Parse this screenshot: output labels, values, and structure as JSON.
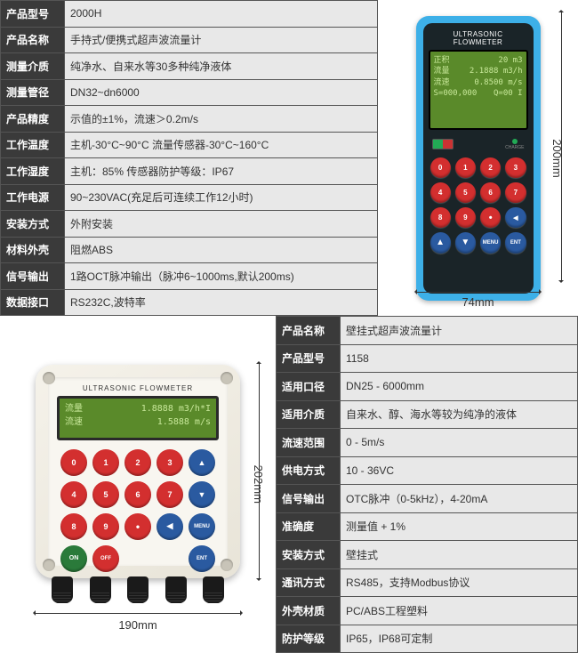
{
  "top": {
    "rows": [
      {
        "label": "产品型号",
        "value": "2000H"
      },
      {
        "label": "产品名称",
        "value": "手持式/便携式超声波流量计"
      },
      {
        "label": "测量介质",
        "value": "纯净水、自来水等30多种纯净液体"
      },
      {
        "label": "测量管径",
        "value": "DN32~dn6000"
      },
      {
        "label": "产品精度",
        "value": "示值的±1%，流速＞0.2m/s"
      },
      {
        "label": "工作温度",
        "value": "主机-30°C~90°C   流量传感器-30°C~160°C"
      },
      {
        "label": "工作湿度",
        "value": "主机：85%  传感器防护等级：IP67"
      },
      {
        "label": "工作电源",
        "value": "90~230VAC(充足后可连续工作12小时)"
      },
      {
        "label": "安装方式",
        "value": "外附安装"
      },
      {
        "label": "材料外壳",
        "value": "阻燃ABS"
      },
      {
        "label": "信号输出",
        "value": "1路OCT脉冲输出（脉冲6~1000ms,默认200ms)"
      },
      {
        "label": "数据接口",
        "value": "RS232C,波特率"
      }
    ],
    "device": {
      "title": "ULTRASONIC FLOWMETER",
      "screen": {
        "r1l": "正积",
        "r1r": "20 m3",
        "r2l": "流量",
        "r2r": "2.1888 m3/h",
        "r3l": "流速",
        "r3r": "0.8500 m/s",
        "r4l": "S=000,000",
        "r4r": "Q=00 I"
      },
      "charge": "CHARGE",
      "dim_h": "200mm",
      "dim_w": "74mm"
    }
  },
  "bottom": {
    "rows": [
      {
        "label": "产品名称",
        "value": "壁挂式超声波流量计"
      },
      {
        "label": "产品型号",
        "value": "1158"
      },
      {
        "label": "适用口径",
        "value": "DN25 - 6000mm"
      },
      {
        "label": "适用介质",
        "value": "自来水、醇、海水等较为纯净的液体"
      },
      {
        "label": "流速范围",
        "value": "0 - 5m/s"
      },
      {
        "label": "供电方式",
        "value": "10 - 36VC"
      },
      {
        "label": "信号输出",
        "value": "OTC脉冲（0-5kHz），4-20mA"
      },
      {
        "label": "准确度",
        "value": "测量值 + 1%"
      },
      {
        "label": "安装方式",
        "value": "壁挂式"
      },
      {
        "label": "通讯方式",
        "value": "RS485，支持Modbus协议"
      },
      {
        "label": "外壳材质",
        "value": "PC/ABS工程塑料"
      },
      {
        "label": "防护等级",
        "value": "IP65，IP68可定制"
      }
    ],
    "device": {
      "title": "ULTRASONIC FLOWMETER",
      "screen": {
        "r1l": "流量",
        "r1r": "1.8888 m3/h*I",
        "r2l": "流速",
        "r2r": "1.5888 m/s"
      },
      "dim_h": "202mm",
      "dim_w": "190mm"
    }
  }
}
